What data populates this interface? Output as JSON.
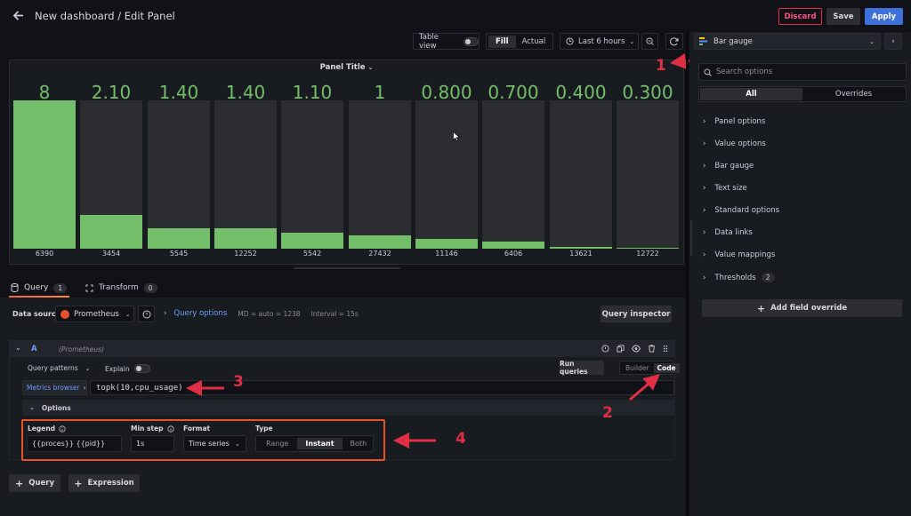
{
  "header": {
    "title": "New dashboard / Edit Panel",
    "discard_label": "Discard",
    "save_label": "Save",
    "apply_label": "Apply"
  },
  "toolbar": {
    "table_view_label": "Table view",
    "fill_label": "Fill",
    "actual_label": "Actual",
    "time_range_label": "Last 6 hours"
  },
  "panel": {
    "title": "Panel Title",
    "bars": [
      {
        "value": "8",
        "label": "6390",
        "fill": 1.0
      },
      {
        "value": "2.10",
        "label": "3454",
        "fill": 0.23
      },
      {
        "value": "1.40",
        "label": "5545",
        "fill": 0.14
      },
      {
        "value": "1.40",
        "label": "12252",
        "fill": 0.14
      },
      {
        "value": "1.10",
        "label": "5542",
        "fill": 0.11
      },
      {
        "value": "1",
        "label": "27432",
        "fill": 0.09
      },
      {
        "value": "0.800",
        "label": "11146",
        "fill": 0.065
      },
      {
        "value": "0.700",
        "label": "6406",
        "fill": 0.05
      },
      {
        "value": "0.400",
        "label": "13621",
        "fill": 0.015
      },
      {
        "value": "0.300",
        "label": "12722",
        "fill": 0.008
      }
    ]
  },
  "tabs": {
    "query_label": "Query",
    "query_count": "1",
    "transform_label": "Transform",
    "transform_count": "0"
  },
  "query": {
    "data_source_label": "Data source",
    "data_source_value": "Prometheus",
    "query_options_label": "Query options",
    "md_text": "MD = auto = 1238",
    "interval_text": "Interval = 15s",
    "query_inspector_label": "Query inspector",
    "row_letter": "A",
    "row_source": "(Prometheus)",
    "query_patterns_label": "Query patterns",
    "explain_label": "Explain",
    "run_queries_label": "Run queries",
    "builder_label": "Builder",
    "code_label": "Code",
    "metrics_browser_label": "Metrics browser",
    "expression": "topk(10,cpu_usage)",
    "options_label": "Options",
    "legend_label": "Legend",
    "legend_value": "{{proces}} {{pid}}",
    "min_step_label": "Min step",
    "min_step_value": "1s",
    "format_label": "Format",
    "format_value": "Time series",
    "type_label": "Type",
    "type_range": "Range",
    "type_instant": "Instant",
    "type_both": "Both",
    "add_query_label": "Query",
    "add_expression_label": "Expression"
  },
  "sidebar": {
    "visualization": "Bar gauge",
    "search_placeholder": "Search options",
    "tab_all": "All",
    "tab_overrides": "Overrides",
    "sections": [
      "Panel options",
      "Value options",
      "Bar gauge",
      "Text size",
      "Standard options",
      "Data links",
      "Value mappings",
      "Thresholds"
    ],
    "thresholds_count": "2",
    "add_override_label": "Add field override"
  },
  "annotations": [
    "1",
    "2",
    "3",
    "4"
  ],
  "colors": {
    "accent_blue": "#3d71d9",
    "bar_green": "#73bf69",
    "annotation_red": "#e02f44",
    "query_options_blue": "#6e9fff"
  }
}
